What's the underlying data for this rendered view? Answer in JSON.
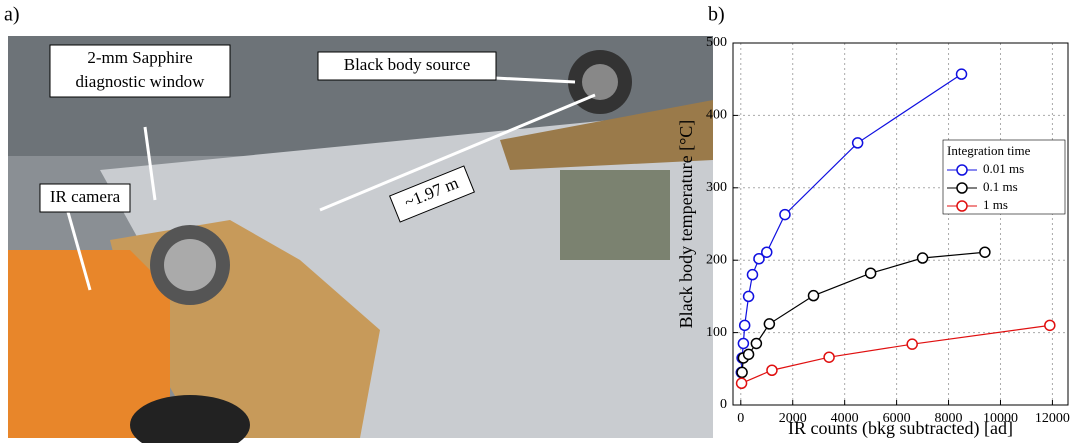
{
  "panel_a": {
    "label": "a)",
    "annotations": [
      "2-mm Sapphire",
      "diagnostic window",
      "Black body source",
      "IR camera",
      "~1.97 m"
    ]
  },
  "chart_data": {
    "type": "line",
    "panel_label": "b)",
    "x_label": "IR counts (bkg subtracted) [ad]",
    "y_label": "Black body temperature [°C]",
    "xlim": [
      -300,
      12600
    ],
    "ylim": [
      0,
      500
    ],
    "xticks": [
      0,
      2000,
      4000,
      6000,
      8000,
      10000,
      12000
    ],
    "yticks": [
      0,
      100,
      200,
      300,
      400,
      500
    ],
    "grid": true,
    "legend_title": "Integration time",
    "legend_position": "upper right",
    "series": [
      {
        "name": "0.01 ms",
        "color": "#1010e0",
        "x": [
          20,
          50,
          100,
          150,
          300,
          450,
          700,
          1000,
          1700,
          4500,
          8500
        ],
        "values": [
          45,
          65,
          85,
          110,
          150,
          180,
          202,
          211,
          263,
          362,
          457
        ]
      },
      {
        "name": "0.1 ms",
        "color": "#000000",
        "x": [
          50,
          100,
          300,
          600,
          1100,
          2800,
          5000,
          7000,
          9400
        ],
        "values": [
          45,
          65,
          70,
          85,
          112,
          151,
          182,
          203,
          211
        ]
      },
      {
        "name": "1 ms",
        "color": "#e01010",
        "x": [
          30,
          1200,
          3400,
          6600,
          11900
        ],
        "values": [
          30,
          48,
          66,
          84,
          110
        ]
      }
    ]
  }
}
